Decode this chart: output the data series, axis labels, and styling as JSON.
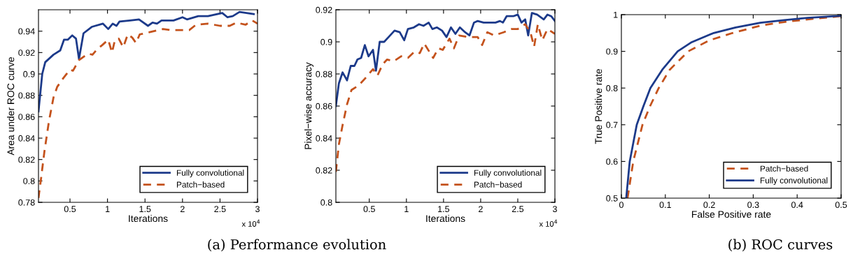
{
  "chart_data": [
    {
      "type": "line",
      "xlabel": "Iterations",
      "ylabel": "Area under ROC curve",
      "xlim": [
        0.08,
        3
      ],
      "ylim": [
        0.78,
        0.96
      ],
      "xticks": [
        0.5,
        1,
        1.5,
        2,
        2.5,
        3
      ],
      "yticks": [
        0.78,
        0.8,
        0.82,
        0.84,
        0.86,
        0.88,
        0.9,
        0.92,
        0.94
      ],
      "grid": false,
      "legend": "bottom right",
      "marker": "none",
      "annotations": [
        "x 10$^{4}$",
        "(a) Performance evolution"
      ],
      "series": [
        {
          "name": "Fully convolutional",
          "color": "#1c3a8a",
          "line_style": "solid",
          "x": [
            0.08,
            0.13,
            0.17,
            0.28,
            0.37,
            0.42,
            0.47,
            0.53,
            0.58,
            0.62,
            0.68,
            0.79,
            0.94,
            1.01,
            1.07,
            1.12,
            1.16,
            1.3,
            1.42,
            1.54,
            1.6,
            1.66,
            1.72,
            1.88,
            2.0,
            2.06,
            2.21,
            2.34,
            2.53,
            2.6,
            2.67,
            2.76,
            2.95
          ],
          "values": [
            0.865,
            0.9,
            0.911,
            0.918,
            0.922,
            0.932,
            0.932,
            0.936,
            0.933,
            0.914,
            0.938,
            0.944,
            0.947,
            0.942,
            0.947,
            0.945,
            0.949,
            0.95,
            0.951,
            0.945,
            0.948,
            0.947,
            0.95,
            0.95,
            0.953,
            0.951,
            0.954,
            0.954,
            0.957,
            0.953,
            0.954,
            0.958,
            0.956
          ]
        },
        {
          "name": "Patch−based",
          "color": "#c4521c",
          "line_style": "dashed",
          "x": [
            0.08,
            0.11,
            0.16,
            0.22,
            0.28,
            0.33,
            0.41,
            0.5,
            0.54,
            0.62,
            0.74,
            0.8,
            0.86,
            0.93,
            1.01,
            1.06,
            1.1,
            1.15,
            1.21,
            1.27,
            1.33,
            1.38,
            1.43,
            1.56,
            1.68,
            1.74,
            1.84,
            1.93,
            2.09,
            2.18,
            2.34,
            2.5,
            2.63,
            2.72,
            2.84,
            2.93,
            3.0
          ],
          "values": [
            0.784,
            0.8,
            0.828,
            0.856,
            0.878,
            0.888,
            0.896,
            0.904,
            0.903,
            0.913,
            0.919,
            0.918,
            0.923,
            0.927,
            0.932,
            0.92,
            0.932,
            0.933,
            0.925,
            0.937,
            0.934,
            0.929,
            0.937,
            0.939,
            0.941,
            0.942,
            0.941,
            0.941,
            0.941,
            0.946,
            0.947,
            0.945,
            0.945,
            0.948,
            0.946,
            0.95,
            0.947
          ]
        }
      ]
    },
    {
      "type": "line",
      "xlabel": "Iterations",
      "ylabel": "Pixel−wise accuracy",
      "xlim": [
        0.05,
        3
      ],
      "ylim": [
        0.8,
        0.92
      ],
      "xticks": [
        0.5,
        1,
        1.5,
        2,
        2.5,
        3
      ],
      "yticks": [
        0.8,
        0.82,
        0.84,
        0.86,
        0.88,
        0.9,
        0.92
      ],
      "grid": false,
      "legend": "bottom right",
      "marker": "none",
      "annotations": [
        "x 10$^{4}$"
      ],
      "series": [
        {
          "name": "Fully convolutional",
          "color": "#1c3a8a",
          "line_style": "solid",
          "x": [
            0.05,
            0.09,
            0.14,
            0.2,
            0.25,
            0.3,
            0.34,
            0.39,
            0.44,
            0.49,
            0.55,
            0.59,
            0.64,
            0.7,
            0.76,
            0.84,
            0.91,
            0.97,
            1.02,
            1.1,
            1.17,
            1.23,
            1.3,
            1.35,
            1.41,
            1.48,
            1.54,
            1.6,
            1.66,
            1.72,
            1.79,
            1.85,
            1.91,
            1.96,
            2.04,
            2.2,
            2.26,
            2.3,
            2.35,
            2.44,
            2.5,
            2.55,
            2.6,
            2.64,
            2.69,
            2.76,
            2.85,
            2.9,
            2.95,
            3.0
          ],
          "values": [
            0.86,
            0.874,
            0.881,
            0.876,
            0.885,
            0.885,
            0.889,
            0.89,
            0.898,
            0.891,
            0.895,
            0.882,
            0.9,
            0.9,
            0.903,
            0.907,
            0.906,
            0.901,
            0.908,
            0.909,
            0.911,
            0.91,
            0.912,
            0.908,
            0.909,
            0.907,
            0.903,
            0.909,
            0.905,
            0.909,
            0.906,
            0.904,
            0.912,
            0.913,
            0.912,
            0.912,
            0.913,
            0.912,
            0.916,
            0.916,
            0.917,
            0.912,
            0.914,
            0.904,
            0.918,
            0.917,
            0.914,
            0.917,
            0.916,
            0.913
          ]
        },
        {
          "name": "Patch−based",
          "color": "#c4521c",
          "line_style": "dashed",
          "x": [
            0.05,
            0.09,
            0.14,
            0.2,
            0.26,
            0.36,
            0.44,
            0.55,
            0.61,
            0.68,
            0.74,
            0.83,
            0.93,
            1.02,
            1.11,
            1.18,
            1.24,
            1.36,
            1.43,
            1.49,
            1.58,
            1.64,
            1.71,
            1.83,
            1.96,
            2.02,
            2.09,
            2.18,
            2.31,
            2.41,
            2.5,
            2.6,
            2.67,
            2.72,
            2.77,
            2.83,
            2.9,
            3.0
          ],
          "values": [
            0.819,
            0.836,
            0.848,
            0.861,
            0.87,
            0.873,
            0.877,
            0.883,
            0.879,
            0.886,
            0.889,
            0.888,
            0.891,
            0.89,
            0.894,
            0.893,
            0.899,
            0.89,
            0.896,
            0.895,
            0.902,
            0.896,
            0.904,
            0.903,
            0.903,
            0.898,
            0.906,
            0.904,
            0.906,
            0.908,
            0.908,
            0.911,
            0.906,
            0.897,
            0.911,
            0.901,
            0.908,
            0.905
          ]
        }
      ]
    },
    {
      "type": "line",
      "xlabel": "False Positive rate",
      "ylabel": "True Positive rate",
      "xlim": [
        0,
        0.5
      ],
      "ylim": [
        0.5,
        1
      ],
      "xticks": [
        0,
        0.1,
        0.2,
        0.3,
        0.4,
        0.5
      ],
      "yticks": [
        0.5,
        0.6,
        0.7,
        0.8,
        0.9,
        1
      ],
      "grid": false,
      "legend": "bottom right",
      "marker": "none",
      "annotations": [
        "(b) ROC curves"
      ],
      "series": [
        {
          "name": "Patch−based",
          "color": "#c4521c",
          "line_style": "dashed",
          "x": [
            0.014,
            0.027,
            0.048,
            0.065,
            0.085,
            0.11,
            0.152,
            0.2,
            0.253,
            0.316,
            0.37,
            0.423,
            0.5
          ],
          "values": [
            0.5,
            0.6,
            0.7,
            0.75,
            0.8,
            0.85,
            0.9,
            0.93,
            0.95,
            0.97,
            0.98,
            0.987,
            0.996
          ]
        },
        {
          "name": "Fully convolutional",
          "color": "#1c3a8a",
          "line_style": "solid",
          "x": [
            0.011,
            0.019,
            0.035,
            0.05,
            0.066,
            0.093,
            0.128,
            0.16,
            0.21,
            0.26,
            0.316,
            0.37,
            0.423,
            0.5
          ],
          "values": [
            0.5,
            0.6,
            0.7,
            0.75,
            0.8,
            0.85,
            0.9,
            0.925,
            0.95,
            0.965,
            0.978,
            0.985,
            0.991,
            0.997
          ]
        }
      ]
    }
  ]
}
